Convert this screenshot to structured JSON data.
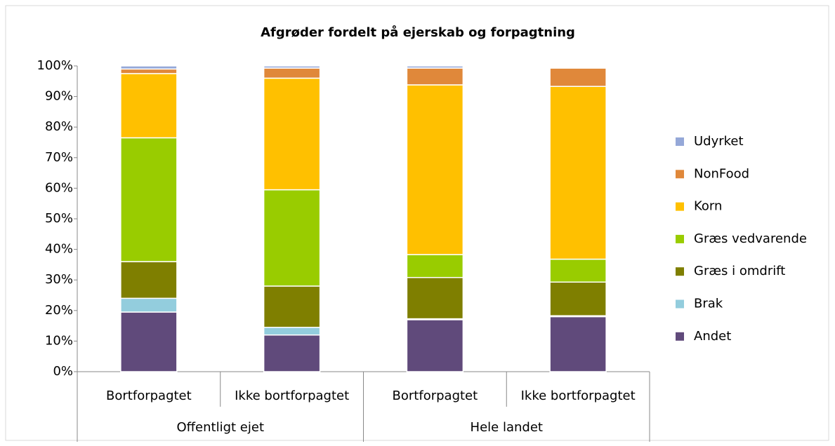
{
  "chart_data": {
    "type": "stacked_bar",
    "title": "Afgrøder fordelt på ejerskab og forpagtning",
    "categories": [
      "Bortforpagtet",
      "Ikke bortforpagtet",
      "Bortforpagtet",
      "Ikke bortforpagtet"
    ],
    "groups": [
      "Offentligt ejet",
      "Hele landet"
    ],
    "series": [
      {
        "name": "Andet",
        "color": "#604a7b",
        "values": [
          19.5,
          12,
          17,
          18
        ]
      },
      {
        "name": "Brak",
        "color": "#93cddd",
        "values": [
          4.5,
          2.5,
          0.3,
          0.3
        ]
      },
      {
        "name": "Græs i omdrift",
        "color": "#7f7f00",
        "values": [
          12,
          13.5,
          13.5,
          11
        ]
      },
      {
        "name": "Græs vedvarende",
        "color": "#99cc00",
        "values": [
          40.5,
          31.5,
          7.5,
          7.5
        ]
      },
      {
        "name": "Korn",
        "color": "#ffc000",
        "values": [
          21,
          36.5,
          55.5,
          56.5
        ]
      },
      {
        "name": "NonFood",
        "color": "#e0883a",
        "values": [
          1.5,
          3.3,
          5.5,
          6
        ]
      },
      {
        "name": "Udyrket",
        "color": "#95a8d8",
        "values": [
          1,
          0.7,
          0.7,
          0.2
        ]
      }
    ],
    "ylim": [
      0,
      100
    ],
    "yticks": [
      {
        "value": 0,
        "label": "0%"
      },
      {
        "value": 10,
        "label": "10%"
      },
      {
        "value": 20,
        "label": "20%"
      },
      {
        "value": 30,
        "label": "30%"
      },
      {
        "value": 40,
        "label": "40%"
      },
      {
        "value": 50,
        "label": "50%"
      },
      {
        "value": 60,
        "label": "60%"
      },
      {
        "value": 70,
        "label": "70%"
      },
      {
        "value": 80,
        "label": "80%"
      },
      {
        "value": 90,
        "label": "90%"
      },
      {
        "value": 100,
        "label": "100%"
      }
    ],
    "legend": "right"
  }
}
